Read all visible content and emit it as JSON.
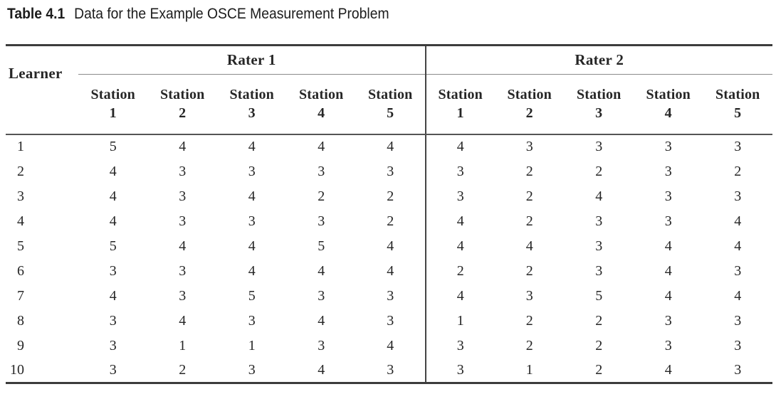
{
  "title": {
    "label": "Table 4.1",
    "caption": "Data for the Example OSCE Measurement Problem"
  },
  "table": {
    "learner_header": "Learner",
    "rater_groups": [
      "Rater 1",
      "Rater 2"
    ],
    "station_word": "Station",
    "station_numbers": [
      "1",
      "2",
      "3",
      "4",
      "5",
      "1",
      "2",
      "3",
      "4",
      "5"
    ],
    "rows": [
      {
        "learner": "1",
        "rater1": [
          5,
          4,
          4,
          4,
          4
        ],
        "rater2": [
          4,
          3,
          3,
          3,
          3
        ]
      },
      {
        "learner": "2",
        "rater1": [
          4,
          3,
          3,
          3,
          3
        ],
        "rater2": [
          3,
          2,
          2,
          3,
          2
        ]
      },
      {
        "learner": "3",
        "rater1": [
          4,
          3,
          4,
          2,
          2
        ],
        "rater2": [
          3,
          2,
          4,
          3,
          3
        ]
      },
      {
        "learner": "4",
        "rater1": [
          4,
          3,
          3,
          3,
          2
        ],
        "rater2": [
          4,
          2,
          3,
          3,
          4
        ]
      },
      {
        "learner": "5",
        "rater1": [
          5,
          4,
          4,
          5,
          4
        ],
        "rater2": [
          4,
          4,
          3,
          4,
          4
        ]
      },
      {
        "learner": "6",
        "rater1": [
          3,
          3,
          4,
          4,
          4
        ],
        "rater2": [
          2,
          2,
          3,
          4,
          3
        ]
      },
      {
        "learner": "7",
        "rater1": [
          4,
          3,
          5,
          3,
          3
        ],
        "rater2": [
          4,
          3,
          5,
          4,
          4
        ]
      },
      {
        "learner": "8",
        "rater1": [
          3,
          4,
          3,
          4,
          3
        ],
        "rater2": [
          1,
          2,
          2,
          3,
          3
        ]
      },
      {
        "learner": "9",
        "rater1": [
          3,
          1,
          1,
          3,
          4
        ],
        "rater2": [
          3,
          2,
          2,
          3,
          3
        ]
      },
      {
        "learner": "10",
        "rater1": [
          3,
          2,
          3,
          4,
          3
        ],
        "rater2": [
          3,
          1,
          2,
          4,
          3
        ]
      }
    ]
  }
}
